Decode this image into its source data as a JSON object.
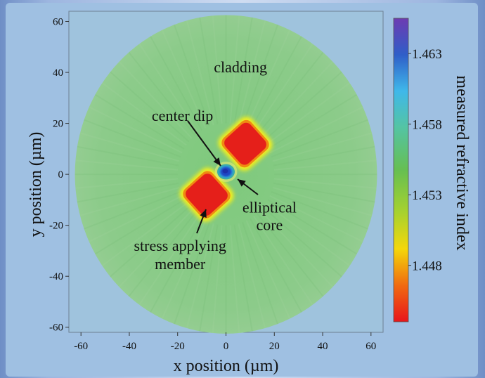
{
  "chart_data": {
    "type": "heatmap",
    "title": "",
    "xlabel": "x position (µm)",
    "ylabel": "y position (µm)",
    "colorbar_label": "measured refractive index",
    "xlim": [
      -65,
      65
    ],
    "ylim": [
      -62,
      64
    ],
    "x_ticks": [
      "-60",
      "-40",
      "-20",
      "0",
      "20",
      "40",
      "60"
    ],
    "y_ticks": [
      "60",
      "40",
      "20",
      "0",
      "-20",
      "-40",
      "-60"
    ],
    "colorbar_ticks": [
      "1.463",
      "1.458",
      "1.453",
      "1.448"
    ],
    "colorbar_range": [
      1.444,
      1.4655
    ],
    "cladding": {
      "center": [
        0,
        0
      ],
      "radius_um": 62.5,
      "index": 1.4555
    },
    "stress_members": [
      {
        "center": [
          8,
          12
        ],
        "size_um": 15,
        "index": 1.4455
      },
      {
        "center": [
          -8,
          -8
        ],
        "size_um": 15,
        "index": 1.4455
      }
    ],
    "core": {
      "center": [
        0,
        1
      ],
      "radius_x_um": 3.2,
      "radius_y_um": 2.6,
      "index": 1.4625,
      "center_dip_index": 1.4635
    },
    "annotations": [
      {
        "text": "cladding",
        "x": 6,
        "y": 40
      },
      {
        "text": "center dip",
        "x": -18,
        "y": 21
      },
      {
        "text": "elliptical",
        "x": 18,
        "y": -15,
        "text2": "core"
      },
      {
        "text": "stress applying",
        "x": -19,
        "y": -30,
        "text2": "member"
      }
    ]
  }
}
